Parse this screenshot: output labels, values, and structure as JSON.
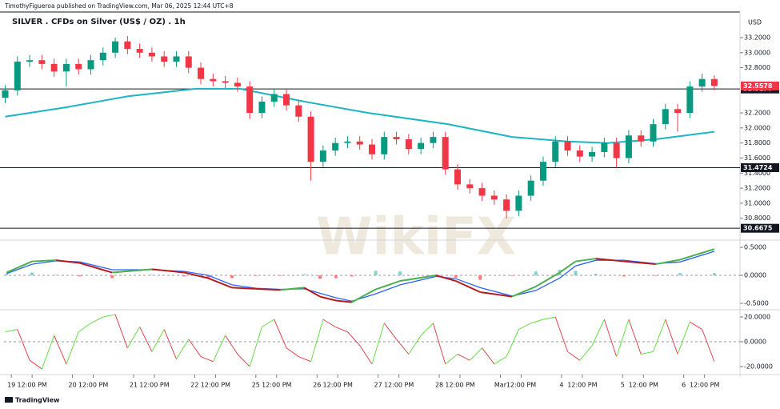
{
  "header": {
    "publisher": "TimothyFigueroa published on TradingView.com, Mar 06, 2025 12:44 UTC+8",
    "watermark": "WikiFX",
    "footer": "TradingView"
  },
  "chart_data": [
    {
      "type": "candlestick",
      "title": "SILVER . CFDs on Silver (US$ / OZ) . 1h",
      "unit": "USD",
      "up_color": "#089981",
      "down_color": "#f23645",
      "x": [
        -0.1,
        0.1,
        0.3,
        0.5,
        0.7,
        0.9,
        1.1,
        1.3,
        1.5,
        1.7,
        1.9,
        2.1,
        2.3,
        2.5,
        2.7,
        2.9,
        3.1,
        3.3,
        3.5,
        3.7,
        3.9,
        4.1,
        4.3,
        4.5,
        4.7,
        4.9,
        5.1,
        5.3,
        5.5,
        5.7,
        5.9,
        6.1,
        6.3,
        6.5,
        6.7,
        6.9,
        7.1,
        7.3,
        7.5,
        7.7,
        7.9,
        8.1,
        8.3,
        8.5,
        8.7,
        8.9,
        9.1,
        9.3,
        9.5,
        9.7,
        9.9,
        10.1,
        10.3,
        10.5,
        10.7,
        10.9,
        11.1,
        11.3,
        11.5
      ],
      "open": [
        32.4,
        32.5,
        32.88,
        32.9,
        32.85,
        32.75,
        32.85,
        32.78,
        32.9,
        33.0,
        33.15,
        33.05,
        33.0,
        32.95,
        32.88,
        32.95,
        32.8,
        32.65,
        32.62,
        32.6,
        32.55,
        32.2,
        32.35,
        32.45,
        32.3,
        32.15,
        31.55,
        31.7,
        31.8,
        31.82,
        31.78,
        31.65,
        31.88,
        31.85,
        31.72,
        31.8,
        31.88,
        31.45,
        31.25,
        31.2,
        31.1,
        31.05,
        30.9,
        31.1,
        31.3,
        31.55,
        31.82,
        31.7,
        31.62,
        31.68,
        31.8,
        31.6,
        31.9,
        31.82,
        32.05,
        32.25,
        32.2,
        32.55,
        32.65
      ],
      "high": [
        32.57,
        32.95,
        32.97,
        32.97,
        32.92,
        32.92,
        32.92,
        32.97,
        33.07,
        33.2,
        33.22,
        33.12,
        33.07,
        33.02,
        33.02,
        33.02,
        32.87,
        32.72,
        32.69,
        32.67,
        32.62,
        32.42,
        32.52,
        32.52,
        32.37,
        32.22,
        31.77,
        31.87,
        31.89,
        31.89,
        31.85,
        31.95,
        31.95,
        31.92,
        31.87,
        31.95,
        31.95,
        31.52,
        31.32,
        31.27,
        31.17,
        31.12,
        31.17,
        31.37,
        31.62,
        31.89,
        31.89,
        31.77,
        31.75,
        31.87,
        31.87,
        31.97,
        31.97,
        32.12,
        32.32,
        32.32,
        32.62,
        32.72,
        32.7
      ],
      "low": [
        32.33,
        32.43,
        32.81,
        32.78,
        32.68,
        32.55,
        32.71,
        32.71,
        32.83,
        32.93,
        32.98,
        32.93,
        32.88,
        32.81,
        32.81,
        32.73,
        32.58,
        32.55,
        32.53,
        32.48,
        32.12,
        32.13,
        32.28,
        32.23,
        32.08,
        31.3,
        31.48,
        31.63,
        31.73,
        31.71,
        31.58,
        31.58,
        31.78,
        31.65,
        31.65,
        31.73,
        31.38,
        31.18,
        31.13,
        31.03,
        30.98,
        30.8,
        30.83,
        31.03,
        31.23,
        31.48,
        31.63,
        31.55,
        31.55,
        31.61,
        31.47,
        31.53,
        31.75,
        31.75,
        31.98,
        31.95,
        32.13,
        32.48,
        32.5
      ],
      "close": [
        32.5,
        32.88,
        32.9,
        32.85,
        32.75,
        32.85,
        32.78,
        32.9,
        33.0,
        33.15,
        33.05,
        33.0,
        32.95,
        32.88,
        32.95,
        32.8,
        32.65,
        32.62,
        32.6,
        32.55,
        32.2,
        32.35,
        32.45,
        32.3,
        32.15,
        31.55,
        31.7,
        31.8,
        31.82,
        31.78,
        31.65,
        31.88,
        31.85,
        31.72,
        31.8,
        31.88,
        31.45,
        31.25,
        31.2,
        31.1,
        31.05,
        30.9,
        31.1,
        31.3,
        31.55,
        31.82,
        31.7,
        31.62,
        31.68,
        31.8,
        31.6,
        31.9,
        31.82,
        32.05,
        32.25,
        32.2,
        32.55,
        32.65,
        32.5578
      ],
      "ma": {
        "color": "#1cb5c1",
        "x": [
          -0.1,
          0.86,
          1.91,
          3.02,
          3.74,
          4.79,
          5.83,
          7.14,
          8.19,
          9.1,
          9.76,
          10.54,
          11.5
        ],
        "values": [
          32.15,
          32.27,
          32.42,
          32.52,
          32.52,
          32.35,
          32.2,
          32.05,
          31.88,
          31.82,
          31.8,
          31.85,
          31.95
        ]
      },
      "levels": [
        32.5177,
        31.4724,
        30.6675
      ],
      "xlim": [
        -0.12,
        11.92
      ],
      "ylim": [
        30.51,
        33.54
      ],
      "yticks": [
        {
          "value": 33.2,
          "label": "33.2000"
        },
        {
          "value": 33.0,
          "label": "33.0000"
        },
        {
          "value": 32.8,
          "label": "32.8000"
        },
        {
          "value": 32.2,
          "label": "32.2000"
        },
        {
          "value": 32.0,
          "label": "32.0000"
        },
        {
          "value": 31.8,
          "label": "31.8000"
        },
        {
          "value": 31.6,
          "label": "31.6000"
        },
        {
          "value": 31.4,
          "label": "31.4000"
        },
        {
          "value": 31.2,
          "label": "31.2000"
        },
        {
          "value": 31.0,
          "label": "31.0000"
        },
        {
          "value": 30.8,
          "label": "30.8000"
        }
      ]
    },
    {
      "type": "macd",
      "up_color": "#4caf50",
      "down_color": "#b71c1c",
      "signal_color": "#2962ff",
      "hist_up": "#7fd3d0",
      "hist_down": "#f77c80",
      "x": [
        -0.08,
        0.34,
        0.73,
        1.12,
        1.65,
        2.3,
        2.83,
        3.22,
        3.61,
        4.0,
        4.4,
        4.79,
        5.05,
        5.31,
        5.57,
        5.96,
        6.36,
        6.95,
        7.27,
        7.67,
        8.19,
        8.58,
        8.97,
        9.23,
        9.56,
        10.02,
        10.54,
        10.94,
        11.5
      ],
      "macd": [
        0.05,
        0.25,
        0.27,
        0.22,
        0.05,
        0.11,
        0.05,
        -0.05,
        -0.22,
        -0.24,
        -0.26,
        -0.22,
        -0.38,
        -0.45,
        -0.48,
        -0.25,
        -0.1,
        0.0,
        -0.1,
        -0.3,
        -0.38,
        -0.2,
        0.05,
        0.25,
        0.3,
        0.25,
        0.2,
        0.28,
        0.47
      ],
      "signal": [
        0.03,
        0.2,
        0.26,
        0.24,
        0.1,
        0.1,
        0.07,
        0.0,
        -0.17,
        -0.23,
        -0.25,
        -0.24,
        -0.32,
        -0.4,
        -0.46,
        -0.33,
        -0.17,
        -0.02,
        -0.06,
        -0.22,
        -0.37,
        -0.27,
        -0.05,
        0.17,
        0.27,
        0.27,
        0.21,
        0.24,
        0.43
      ],
      "histogram": [
        0.02,
        0.05,
        0.01,
        -0.02,
        -0.05,
        0.01,
        -0.02,
        -0.05,
        -0.05,
        -0.01,
        -0.01,
        0.02,
        -0.06,
        -0.05,
        -0.02,
        0.08,
        0.07,
        0.02,
        -0.04,
        -0.08,
        -0.01,
        0.07,
        0.1,
        0.08,
        0.03,
        -0.02,
        -0.01,
        0.04,
        0.04
      ],
      "xlim": [
        -0.12,
        11.92
      ],
      "ylim": [
        -0.586,
        0.63
      ],
      "yticks": [
        {
          "value": 0.5,
          "label": "0.5000"
        },
        {
          "value": 0,
          "label": "0.0000"
        },
        {
          "value": -0.5,
          "label": "-0.5000"
        }
      ]
    },
    {
      "type": "line",
      "up_color": "#66dd44",
      "down_color": "#e0464f",
      "x": [
        -0.1,
        0.1,
        0.3,
        0.5,
        0.7,
        0.9,
        1.1,
        1.3,
        1.5,
        1.7,
        1.9,
        2.1,
        2.3,
        2.5,
        2.7,
        2.9,
        3.1,
        3.3,
        3.5,
        3.7,
        3.9,
        4.1,
        4.3,
        4.5,
        4.7,
        4.9,
        5.1,
        5.3,
        5.5,
        5.7,
        5.9,
        6.1,
        6.3,
        6.5,
        6.7,
        6.9,
        7.1,
        7.3,
        7.5,
        7.7,
        7.9,
        8.1,
        8.3,
        8.5,
        8.7,
        8.9,
        9.1,
        9.3,
        9.5,
        9.7,
        9.9,
        10.1,
        10.3,
        10.5,
        10.7,
        10.9,
        11.1,
        11.3,
        11.5
      ],
      "values": [
        8,
        10,
        -15,
        -22,
        5,
        -18,
        8,
        15,
        20,
        22,
        -5,
        12,
        -8,
        10,
        -14,
        2,
        -12,
        -16,
        5,
        -10,
        -20,
        12,
        18,
        -5,
        -12,
        -16,
        18,
        12,
        8,
        -3,
        -18,
        15,
        2,
        -10,
        5,
        15,
        -18,
        -10,
        -15,
        -5,
        -18,
        -12,
        10,
        15,
        18,
        20,
        -8,
        -15,
        -3,
        18,
        -12,
        18,
        -10,
        -8,
        18,
        -10,
        16,
        10,
        -16
      ],
      "xlim": [
        -0.12,
        11.92
      ],
      "ylim": [
        -25.2,
        23.9
      ],
      "yticks": [
        {
          "value": 20,
          "label": "20.0000"
        },
        {
          "value": 0,
          "label": "0.0000"
        },
        {
          "value": -20,
          "label": "-20.0000"
        }
      ],
      "xticks": [
        {
          "value": 0,
          "label": "19"
        },
        {
          "value": 0.34,
          "label": "12:00 PM"
        },
        {
          "value": 1,
          "label": "20"
        },
        {
          "value": 1.34,
          "label": "12:00 PM"
        },
        {
          "value": 2,
          "label": "21"
        },
        {
          "value": 2.34,
          "label": "12:00 PM"
        },
        {
          "value": 3,
          "label": "22"
        },
        {
          "value": 3.34,
          "label": "12:00 PM"
        },
        {
          "value": 4,
          "label": "25"
        },
        {
          "value": 4.34,
          "label": "12:00 PM"
        },
        {
          "value": 5,
          "label": "26"
        },
        {
          "value": 5.34,
          "label": "12:00 PM"
        },
        {
          "value": 6,
          "label": "27"
        },
        {
          "value": 6.34,
          "label": "12:00 PM"
        },
        {
          "value": 7,
          "label": "28"
        },
        {
          "value": 7.34,
          "label": "12:00 PM"
        },
        {
          "value": 8,
          "label": "Mar"
        },
        {
          "value": 8.34,
          "label": "12:00 PM"
        },
        {
          "value": 9,
          "label": "4"
        },
        {
          "value": 9.34,
          "label": "12:00 PM"
        },
        {
          "value": 10,
          "label": "5"
        },
        {
          "value": 10.34,
          "label": "12:00 PM"
        },
        {
          "value": 11,
          "label": "6"
        },
        {
          "value": 11.34,
          "label": "12:00 PM"
        }
      ]
    }
  ]
}
